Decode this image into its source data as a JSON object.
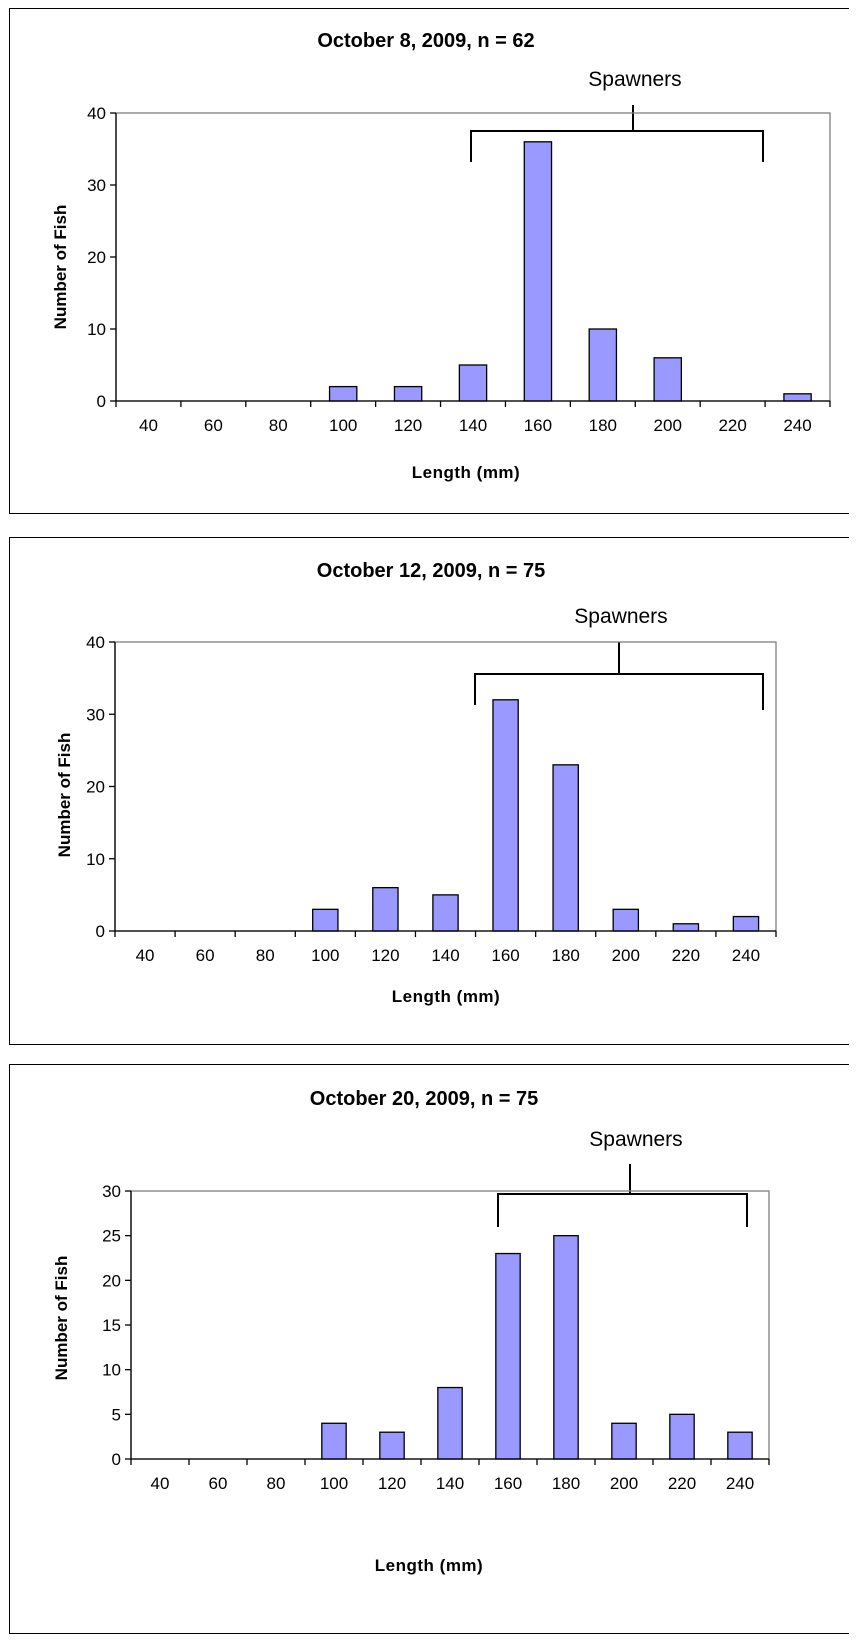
{
  "chart_data": [
    {
      "type": "bar",
      "title": "October 8, 2009, n = 62",
      "xlabel": "Length (mm)",
      "ylabel": "Number of Fish",
      "annotation": "Spawners",
      "categories": [
        "40",
        "60",
        "80",
        "100",
        "120",
        "140",
        "160",
        "180",
        "200",
        "220",
        "240"
      ],
      "values": [
        0,
        0,
        0,
        2,
        2,
        5,
        36,
        10,
        6,
        0,
        1
      ],
      "ylim": [
        0,
        40
      ],
      "yticks": [
        0,
        10,
        20,
        30,
        40
      ],
      "bar_color": "#9999ff",
      "grid": false,
      "legend": "none"
    },
    {
      "type": "bar",
      "title": "October 12, 2009, n = 75",
      "xlabel": "Length (mm)",
      "ylabel": "Number of Fish",
      "annotation": "Spawners",
      "categories": [
        "40",
        "60",
        "80",
        "100",
        "120",
        "140",
        "160",
        "180",
        "200",
        "220",
        "240"
      ],
      "values": [
        0,
        0,
        0,
        3,
        6,
        5,
        32,
        23,
        3,
        1,
        2
      ],
      "ylim": [
        0,
        40
      ],
      "yticks": [
        0,
        10,
        20,
        30,
        40
      ],
      "bar_color": "#9999ff",
      "grid": false,
      "legend": "none"
    },
    {
      "type": "bar",
      "title": "October 20, 2009, n = 75",
      "xlabel": "Length (mm)",
      "ylabel": "Number of Fish",
      "annotation": "Spawners",
      "categories": [
        "40",
        "60",
        "80",
        "100",
        "120",
        "140",
        "160",
        "180",
        "200",
        "220",
        "240"
      ],
      "values": [
        0,
        0,
        0,
        4,
        3,
        8,
        23,
        25,
        4,
        5,
        3
      ],
      "ylim": [
        0,
        30
      ],
      "yticks": [
        0,
        5,
        10,
        15,
        20,
        25,
        30
      ],
      "bar_color": "#9999ff",
      "grid": false,
      "legend": "none"
    }
  ]
}
